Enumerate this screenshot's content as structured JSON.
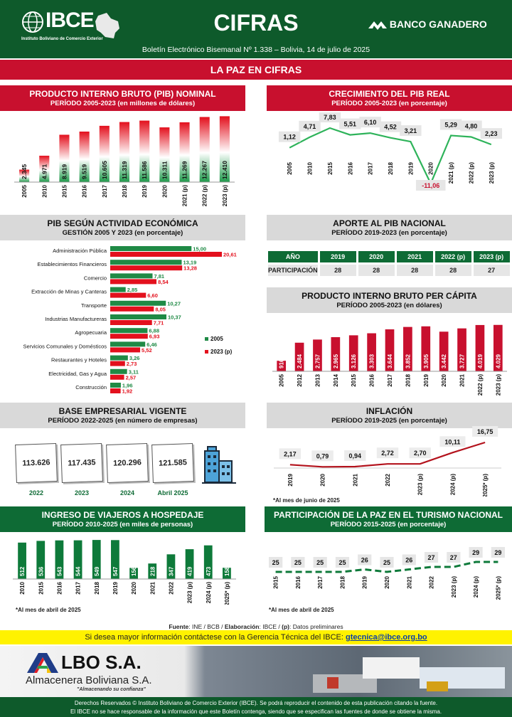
{
  "header": {
    "org": "IBCE",
    "org_sub": "Instituto Boliviano de Comercio Exterior",
    "title": "CIFRAS",
    "sponsor": "BANCO GANADERO",
    "bulletin": "Boletín Electrónico Bisemanal Nº 1.338 – Bolivia, 14 de julio de 2025",
    "section": "LA PAZ EN CIFRAS"
  },
  "panels": {
    "pib": {
      "title": "PRODUCTO INTERNO BRUTO (PIB) NOMINAL",
      "subtitle": "PERÍODO 2005-2023 (en millones de dólares)"
    },
    "crec": {
      "title": "CRECIMIENTO DEL PIB REAL",
      "subtitle": "PERÍODO 2005-2023 (en porcentaje)"
    },
    "act": {
      "title": "PIB SEGÚN ACTIVIDAD ECONÓMICA",
      "subtitle": "GESTIÓN 2005 Y 2023 (en porcentaje)"
    },
    "aporte": {
      "title": "APORTE AL PIB NACIONAL",
      "subtitle": "PERÍODO 2019-2023 (en porcentaje)"
    },
    "percap": {
      "title": "PRODUCTO INTERNO BRUTO PER CÁPITA",
      "subtitle": "PERÍODO 2005-2023 (en dólares)"
    },
    "base": {
      "title": "BASE EMPRESARIAL VIGENTE",
      "subtitle": "PERÍODO 2022-2025 (en número de empresas)"
    },
    "infl": {
      "title": "INFLACIÓN",
      "subtitle": "PERÍODO 2019-2025 (en porcentaje)",
      "note": "*Al mes de junio de 2025"
    },
    "viaj": {
      "title": "INGRESO DE VIAJEROS A HOSPEDAJE",
      "subtitle": "PERÍODO 2010-2025 (en miles de personas)",
      "note": "*Al mes de abril de 2025"
    },
    "tur": {
      "title": "PARTICIPACIÓN DE LA PAZ EN EL TURISMO NACIONAL",
      "subtitle": "PERÍODO 2015-2025 (en porcentaje)",
      "note": "*Al mes de abril de 2025"
    }
  },
  "aporte_table": {
    "headers": [
      "AÑO",
      "2019",
      "2020",
      "2021",
      "2022 (p)",
      "2023 (p)"
    ],
    "row_label": "PARTICIPACIÓN",
    "values": [
      "28",
      "28",
      "28",
      "28",
      "27"
    ]
  },
  "base_cards": [
    {
      "value": "113.626",
      "label": "2022"
    },
    {
      "value": "117.435",
      "label": "2023"
    },
    {
      "value": "120.296",
      "label": "2024"
    },
    {
      "value": "121.585",
      "label": "Abril 2025"
    }
  ],
  "footer": {
    "fuente_label": "Fuente",
    "fuente_text": ": INE / BCB / ",
    "elab_label": "Elaboración",
    "elab_text": ": IBCE / ",
    "p_label": "(p)",
    "p_text": ": Datos preliminares",
    "contact": "Si desea mayor información contáctese con la Gerencia Técnica del IBCE: ",
    "email": "gtecnica@ibce.org.bo",
    "ad_name": "LBO S.A.",
    "ad_full": "Almacenera Boliviana S.A.",
    "ad_slogan": "\"Almacenando su confianza\"",
    "legal1": "Derechos Reservados © Instituto Boliviano de Comercio Exterior (IBCE). Se podrá reproducir el contenido de esta publicación citando la fuente.",
    "legal2": "El IBCE no se hace responsable de la información que este Boletín contenga, siendo que se especifican las fuentes de donde se obtiene la misma."
  },
  "chart_data": [
    {
      "id": "pib",
      "type": "bar",
      "categories": [
        "2005",
        "2010",
        "2015",
        "2016",
        "2017",
        "2018",
        "2019",
        "2020",
        "2021 (p)",
        "2022 (p)",
        "2023 (p)"
      ],
      "values": [
        2345,
        4971,
        8919,
        9519,
        10605,
        11319,
        11586,
        10311,
        11269,
        12267,
        12410
      ],
      "labels": [
        "2.345",
        "4.971",
        "8.919",
        "9.519",
        "10.605",
        "11.319",
        "11.586",
        "10.311",
        "11.269",
        "12.267",
        "12.410"
      ],
      "colors": {
        "top": "#e3101d",
        "bottom": "#1f9a4b"
      }
    },
    {
      "id": "crec",
      "type": "line",
      "categories": [
        "2005",
        "2010",
        "2015",
        "2016",
        "2017",
        "2018",
        "2019",
        "2020",
        "2021 (p)",
        "2022 (p)",
        "2023 (p)"
      ],
      "values": [
        1.12,
        4.71,
        7.83,
        5.51,
        6.1,
        4.52,
        3.21,
        -11.06,
        5.29,
        4.8,
        2.23
      ],
      "labels": [
        "1,12",
        "4,71",
        "7,83",
        "5,51",
        "6,10",
        "4,52",
        "3,21",
        "-11,06",
        "5,29",
        "4,80",
        "2,23"
      ],
      "color": "#2eb35a"
    },
    {
      "id": "act",
      "type": "bar",
      "orientation": "horizontal",
      "categories": [
        "Administración Pública",
        "Establecimientos Financieros",
        "Comercio",
        "Extracción de Minas y Canteras",
        "Transporte",
        "Industrias Manufactureras",
        "Agropecuaria",
        "Servicios Comunales y Domésticos",
        "Restaurantes y Hoteles",
        "Electricidad, Gas y Agua",
        "Construcción"
      ],
      "series": [
        {
          "name": "2005",
          "values": [
            15.0,
            13.19,
            7.81,
            2.85,
            10.27,
            10.37,
            6.88,
            6.46,
            3.26,
            3.11,
            1.96
          ],
          "labels": [
            "15,00",
            "13,19",
            "7,81",
            "2,85",
            "10,27",
            "10,37",
            "6,88",
            "6,46",
            "3,26",
            "3,11",
            "1,96"
          ],
          "color": "#1f8a45"
        },
        {
          "name": "2023 (p)",
          "values": [
            20.61,
            13.28,
            8.54,
            6.6,
            8.05,
            7.71,
            6.93,
            5.52,
            2.73,
            2.57,
            1.92
          ],
          "labels": [
            "20,61",
            "13,28",
            "8,54",
            "6,60",
            "8,05",
            "7,71",
            "6,93",
            "5,52",
            "2,73",
            "2,57",
            "1,92"
          ],
          "color": "#e3101d"
        }
      ]
    },
    {
      "id": "percap",
      "type": "bar",
      "categories": [
        "2005",
        "2012",
        "2013",
        "2014",
        "2015",
        "2016",
        "2017",
        "2018",
        "2019",
        "2020",
        "2021",
        "2022 (p)",
        "2023 (p)"
      ],
      "values": [
        916,
        2484,
        2757,
        2965,
        3126,
        3303,
        3644,
        3852,
        3905,
        3442,
        3727,
        4019,
        4029
      ],
      "labels": [
        "916",
        "2.484",
        "2.757",
        "2.965",
        "3.126",
        "3.303",
        "3.644",
        "3.852",
        "3.905",
        "3.442",
        "3.727",
        "4.019",
        "4.029"
      ],
      "color": "#c8102e"
    },
    {
      "id": "infl",
      "type": "line",
      "categories": [
        "2019",
        "2020",
        "2021",
        "2022",
        "2023 (p)",
        "2024 (p)",
        "2025* (p)"
      ],
      "values": [
        2.17,
        0.79,
        0.94,
        2.72,
        2.7,
        10.11,
        16.75
      ],
      "labels": [
        "2,17",
        "0,79",
        "0,94",
        "2,72",
        "2,70",
        "10,11",
        "16,75"
      ],
      "color": "#b3121c"
    },
    {
      "id": "viaj",
      "type": "bar",
      "categories": [
        "2010",
        "2015",
        "2016",
        "2017",
        "2018",
        "2019",
        "2020",
        "2021",
        "2022",
        "2023 (p)",
        "2024 (p)",
        "2025* (p)"
      ],
      "values": [
        512,
        536,
        543,
        544,
        549,
        547,
        156,
        218,
        347,
        419,
        473,
        158
      ],
      "labels": [
        "512",
        "536",
        "543",
        "544",
        "549",
        "547",
        "156",
        "218",
        "347",
        "419",
        "473",
        "158"
      ],
      "color": "#0e7a3a"
    },
    {
      "id": "tur",
      "type": "line",
      "style": "dashed",
      "categories": [
        "2015",
        "2016",
        "2017",
        "2018",
        "2019",
        "2020",
        "2021",
        "2022",
        "2023 (p)",
        "2024 (p)",
        "2025* (p)"
      ],
      "values": [
        25,
        25,
        25,
        25,
        26,
        25,
        26,
        27,
        27,
        29,
        29
      ],
      "labels": [
        "25",
        "25",
        "25",
        "25",
        "26",
        "25",
        "26",
        "27",
        "27",
        "29",
        "29"
      ],
      "color": "#0e7a3a"
    }
  ]
}
